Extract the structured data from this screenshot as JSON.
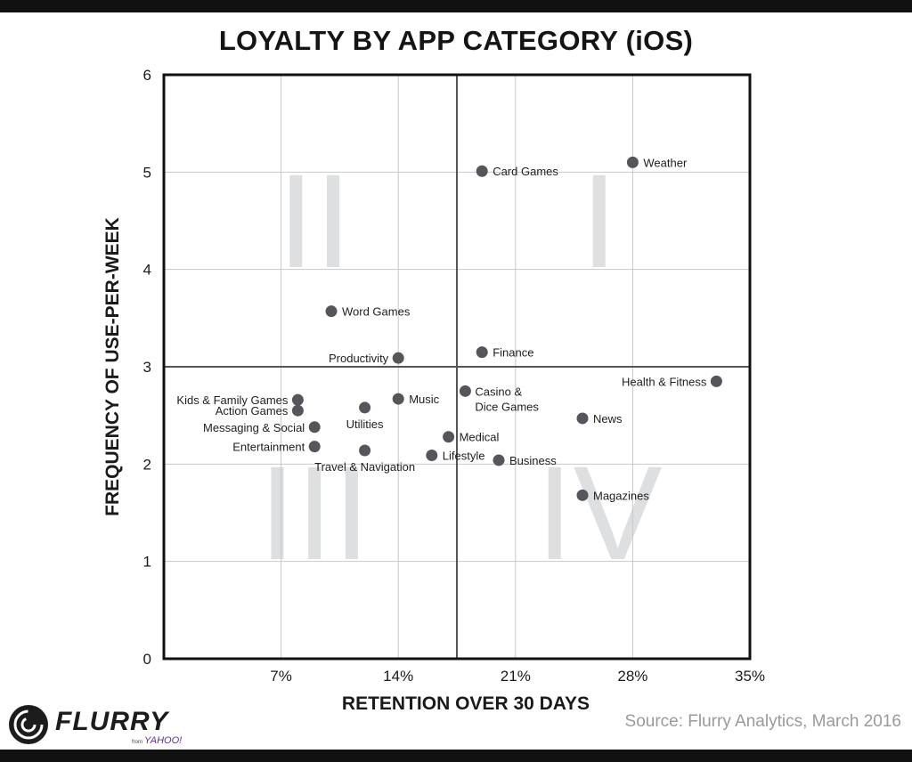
{
  "chart_data": {
    "type": "scatter",
    "title": "LOYALTY BY APP CATEGORY (iOS)",
    "xlabel": "RETENTION OVER 30 DAYS",
    "ylabel": "FREQUENCY OF USE-PER-WEEK",
    "xlim": [
      0,
      35
    ],
    "ylim": [
      0,
      6
    ],
    "x_ticks": [
      {
        "value": 7,
        "label": "7%"
      },
      {
        "value": 14,
        "label": "14%"
      },
      {
        "value": 21,
        "label": "21%"
      },
      {
        "value": 28,
        "label": "28%"
      },
      {
        "value": 35,
        "label": "35%"
      }
    ],
    "y_ticks": [
      {
        "value": 0,
        "label": "0"
      },
      {
        "value": 1,
        "label": "1"
      },
      {
        "value": 2,
        "label": "2"
      },
      {
        "value": 3,
        "label": "3"
      },
      {
        "value": 4,
        "label": "4"
      },
      {
        "value": 5,
        "label": "5"
      },
      {
        "value": 6,
        "label": "6"
      }
    ],
    "grid": true,
    "quadrant_divider": {
      "x": 17.5,
      "y": 3
    },
    "quadrants": [
      {
        "label": "I",
        "x": 26,
        "y": 4.5
      },
      {
        "label": "II",
        "x": 9,
        "y": 4.5
      },
      {
        "label": "III",
        "x": 9,
        "y": 1.5
      },
      {
        "label": "IV",
        "x": 26,
        "y": 1.5
      }
    ],
    "points": [
      {
        "name": "Weather",
        "x": 28,
        "y": 5.1,
        "anchor": "right"
      },
      {
        "name": "Card Games",
        "x": 19,
        "y": 5.01,
        "anchor": "right"
      },
      {
        "name": "Word Games",
        "x": 10,
        "y": 3.57,
        "anchor": "right"
      },
      {
        "name": "Finance",
        "x": 19,
        "y": 3.15,
        "anchor": "right"
      },
      {
        "name": "Productivity",
        "x": 14,
        "y": 3.09,
        "anchor": "left"
      },
      {
        "name": "Health & Fitness",
        "x": 33,
        "y": 2.85,
        "anchor": "left"
      },
      {
        "name": "Casino & Dice Games",
        "x": 18,
        "y": 2.75,
        "anchor": "right-wrap"
      },
      {
        "name": "Music",
        "x": 14,
        "y": 2.67,
        "anchor": "right"
      },
      {
        "name": "Kids & Family Games",
        "x": 8,
        "y": 2.66,
        "anchor": "left"
      },
      {
        "name": "Utilities",
        "x": 12,
        "y": 2.58,
        "anchor": "below"
      },
      {
        "name": "Action Games",
        "x": 8,
        "y": 2.55,
        "anchor": "left"
      },
      {
        "name": "News",
        "x": 25,
        "y": 2.47,
        "anchor": "right"
      },
      {
        "name": "Messaging & Social",
        "x": 9,
        "y": 2.38,
        "anchor": "left"
      },
      {
        "name": "Medical",
        "x": 17,
        "y": 2.28,
        "anchor": "right"
      },
      {
        "name": "Entertainment",
        "x": 9,
        "y": 2.18,
        "anchor": "left"
      },
      {
        "name": "Travel & Navigation",
        "x": 12,
        "y": 2.14,
        "anchor": "below"
      },
      {
        "name": "Lifestyle",
        "x": 16,
        "y": 2.09,
        "anchor": "right"
      },
      {
        "name": "Business",
        "x": 20,
        "y": 2.04,
        "anchor": "right"
      },
      {
        "name": "Magazines",
        "x": 25,
        "y": 1.68,
        "anchor": "right"
      }
    ],
    "marker_color": "#54565c",
    "grid_color": "#c8c8c8",
    "divider_color": "#555555"
  },
  "branding": {
    "logo_text": "FLURRY",
    "from_text": "from",
    "parent_text": "YAHOO!"
  },
  "source_text": "Source: Flurry Analytics, March 2016"
}
